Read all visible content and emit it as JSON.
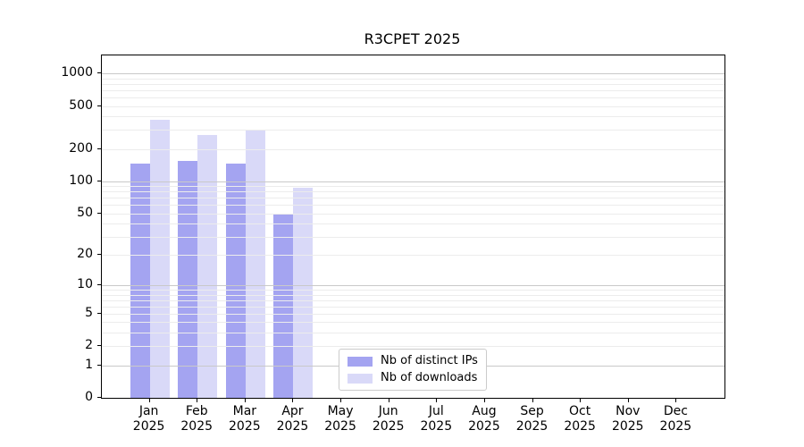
{
  "chart_data": {
    "type": "bar",
    "title": "R3CPET 2025",
    "categories": [
      "Jan",
      "Feb",
      "Mar",
      "Apr",
      "May",
      "Jun",
      "Jul",
      "Aug",
      "Sep",
      "Oct",
      "Nov",
      "Dec"
    ],
    "x_year": "2025",
    "series": [
      {
        "name": "Nb of distinct IPs",
        "color": "#a4a4f1",
        "values": [
          147,
          154,
          145,
          49,
          null,
          null,
          null,
          null,
          null,
          null,
          null,
          null
        ]
      },
      {
        "name": "Nb of downloads",
        "color": "#d9d9f8",
        "values": [
          375,
          270,
          295,
          86,
          null,
          null,
          null,
          null,
          null,
          null,
          null,
          null
        ]
      }
    ],
    "yscale": "log1p",
    "yticks": [
      0,
      1,
      2,
      5,
      10,
      20,
      50,
      100,
      200,
      500,
      1000
    ],
    "ylim": [
      0,
      1470
    ],
    "grid": {
      "major_values": [
        1,
        10,
        100,
        1000
      ],
      "minor_multipliers": [
        2,
        3,
        4,
        5,
        6,
        7,
        8,
        9
      ],
      "minor_decades": [
        1,
        10,
        100
      ],
      "minor_color": "#ececec",
      "major_color": "#c9c9c9",
      "grid_above_bars": true
    },
    "legend_position": "lower center",
    "colors": {
      "background": "#ffffff",
      "spine": "#000000",
      "text": "#000000"
    }
  }
}
